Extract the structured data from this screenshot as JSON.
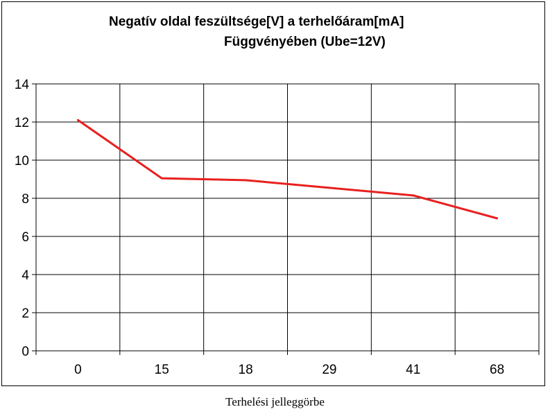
{
  "chart_data": {
    "type": "line",
    "title_line1": "Negatív oldal feszültsége[V] a terhelőáram[mA]",
    "title_line2": "Függvényében  (Ube=12V)",
    "categories": [
      "0",
      "15",
      "18",
      "29",
      "41",
      "68"
    ],
    "series": [
      {
        "values": [
          12.1,
          9.05,
          8.95,
          8.55,
          8.15,
          6.95
        ],
        "color": "#e8201e"
      }
    ],
    "ylim": [
      0,
      14
    ],
    "yticks": [
      0,
      2,
      4,
      6,
      8,
      10,
      12,
      14
    ],
    "grid": true,
    "legend": "none"
  },
  "caption": "Terhelési jelleggörbe"
}
